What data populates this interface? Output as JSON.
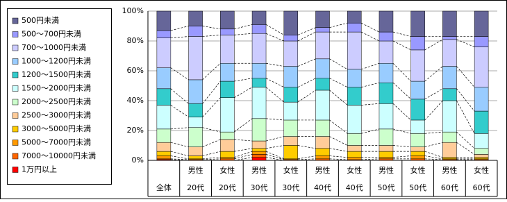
{
  "chart_data": {
    "type": "stacked_bar_percent",
    "categories": [
      [
        "全体"
      ],
      [
        "男性",
        "20代"
      ],
      [
        "女性",
        "20代"
      ],
      [
        "男性",
        "30代"
      ],
      [
        "女性",
        "30代"
      ],
      [
        "男性",
        "40代"
      ],
      [
        "女性",
        "40代"
      ],
      [
        "男性",
        "50代"
      ],
      [
        "女性",
        "50代"
      ],
      [
        "男性",
        "60代"
      ],
      [
        "女性",
        "60代"
      ]
    ],
    "ylim": [
      0,
      100
    ],
    "yticks": [
      {
        "value": 0,
        "label": "0%"
      },
      {
        "value": 20,
        "label": "20%"
      },
      {
        "value": 40,
        "label": "40%"
      },
      {
        "value": 60,
        "label": "60%"
      },
      {
        "value": 80,
        "label": "80%"
      },
      {
        "value": 100,
        "label": "100%"
      }
    ],
    "grid": true,
    "legend": "left",
    "series": [
      {
        "name": "500円未満",
        "color": "#666699",
        "values": [
          13,
          10,
          12,
          9,
          16,
          11,
          8,
          14,
          17,
          17,
          17
        ]
      },
      {
        "name": "500～700円未満",
        "color": "#9999ff",
        "values": [
          5,
          7,
          4,
          6,
          4,
          3,
          6,
          6,
          9,
          2,
          7
        ]
      },
      {
        "name": "700～1000円未満",
        "color": "#ccccff",
        "values": [
          20,
          29,
          19,
          20,
          17,
          18,
          25,
          15,
          21,
          18,
          27
        ]
      },
      {
        "name": "1000～1200円未満",
        "color": "#99ccff",
        "values": [
          14,
          16,
          12,
          10,
          14,
          13,
          12,
          13,
          12,
          15,
          16
        ]
      },
      {
        "name": "1200～1500円未満",
        "color": "#33cccc",
        "values": [
          11,
          9,
          11,
          6,
          10,
          8,
          12,
          14,
          14,
          8,
          15
        ]
      },
      {
        "name": "1500～2000円未満",
        "color": "#ccffff",
        "values": [
          16,
          7,
          23,
          21,
          12,
          20,
          19,
          17,
          9,
          21,
          10
        ]
      },
      {
        "name": "2000～2500円未満",
        "color": "#ccffcc",
        "values": [
          9,
          13,
          5,
          15,
          11,
          11,
          8,
          11,
          9,
          7,
          4
        ]
      },
      {
        "name": "2500～3000円未満",
        "color": "#ffcc99",
        "values": [
          6,
          6,
          8,
          5,
          6,
          8,
          4,
          4,
          3,
          10,
          2
        ]
      },
      {
        "name": "3000～5000円未満",
        "color": "#ffcc00",
        "values": [
          3,
          2,
          4,
          2,
          9,
          5,
          4,
          4,
          3,
          1,
          1
        ]
      },
      {
        "name": "5000～7000円未満",
        "color": "#ff9900",
        "values": [
          2,
          0.5,
          1,
          2,
          0.5,
          2,
          1.5,
          1,
          2,
          0.5,
          0.5
        ]
      },
      {
        "name": "7000～10000円未満",
        "color": "#ff6600",
        "values": [
          0.5,
          0.5,
          1,
          2,
          0.5,
          1,
          0.5,
          1,
          1,
          0.5,
          0.5
        ]
      },
      {
        "name": "1万円以上",
        "color": "#ff0000",
        "values": [
          0.5,
          0,
          0,
          2,
          0,
          0,
          0,
          0,
          0,
          0,
          0
        ]
      }
    ]
  }
}
